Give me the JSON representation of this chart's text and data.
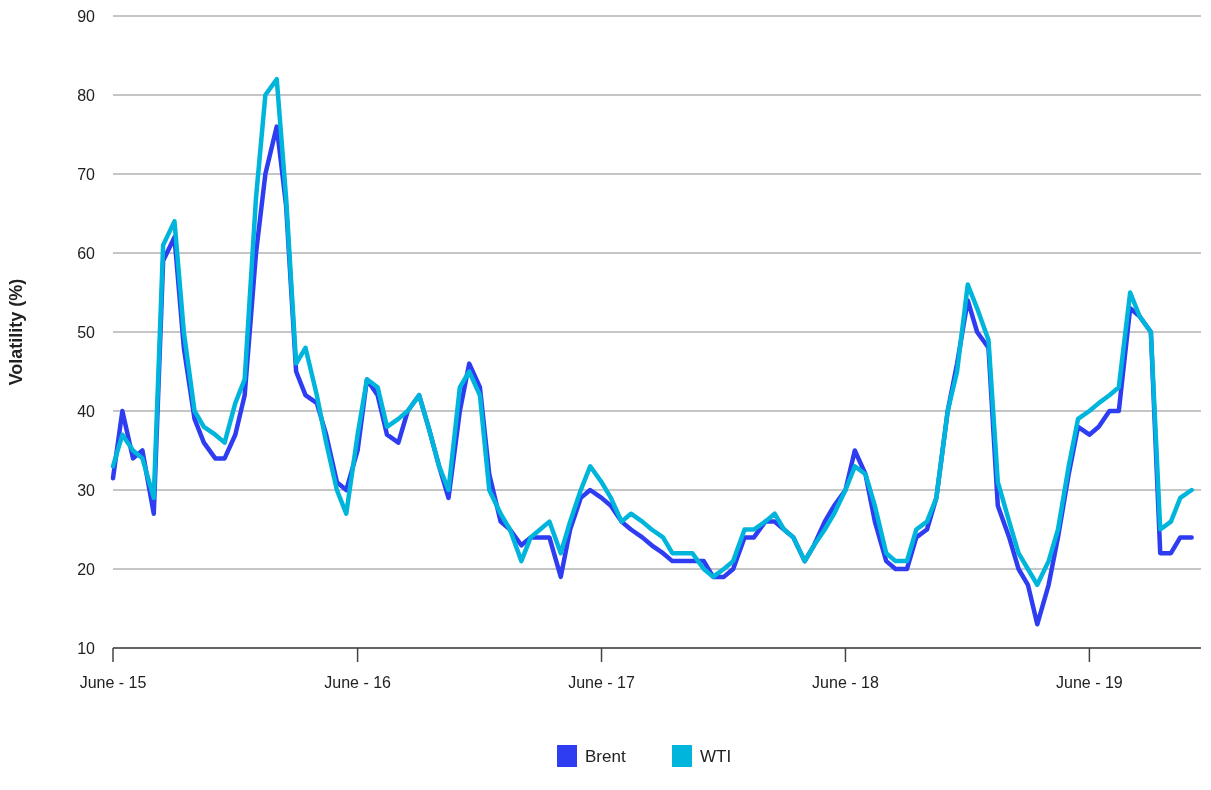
{
  "chart_data": {
    "type": "line",
    "ylabel": "Volatility (%)",
    "x": [
      "2015-06-01",
      "2015-06-15",
      "2015-07-01",
      "2015-07-15",
      "2015-08-01",
      "2015-08-15",
      "2015-09-01",
      "2015-09-15",
      "2015-10-01",
      "2015-10-15",
      "2015-11-01",
      "2015-11-15",
      "2015-12-01",
      "2015-12-15",
      "2016-01-01",
      "2016-01-15",
      "2016-02-01",
      "2016-02-15",
      "2016-03-01",
      "2016-03-15",
      "2016-04-01",
      "2016-04-15",
      "2016-05-01",
      "2016-05-15",
      "2016-06-01",
      "2016-06-15",
      "2016-07-01",
      "2016-07-15",
      "2016-08-01",
      "2016-08-15",
      "2016-09-01",
      "2016-09-15",
      "2016-10-01",
      "2016-10-15",
      "2016-11-01",
      "2016-11-15",
      "2016-12-01",
      "2016-12-15",
      "2017-01-01",
      "2017-01-15",
      "2017-02-01",
      "2017-02-15",
      "2017-03-01",
      "2017-03-15",
      "2017-04-01",
      "2017-04-15",
      "2017-05-01",
      "2017-05-15",
      "2017-06-01",
      "2017-06-15",
      "2017-07-01",
      "2017-07-15",
      "2017-08-01",
      "2017-08-15",
      "2017-09-01",
      "2017-09-15",
      "2017-10-01",
      "2017-10-15",
      "2017-11-01",
      "2017-11-15",
      "2017-12-01",
      "2017-12-15",
      "2018-01-01",
      "2018-01-15",
      "2018-02-01",
      "2018-02-15",
      "2018-03-01",
      "2018-03-15",
      "2018-04-01",
      "2018-04-15",
      "2018-05-01",
      "2018-05-15",
      "2018-06-01",
      "2018-06-15",
      "2018-07-01",
      "2018-07-15",
      "2018-08-01",
      "2018-08-15",
      "2018-09-01",
      "2018-09-15",
      "2018-10-01",
      "2018-10-15",
      "2018-11-01",
      "2018-11-15",
      "2018-12-01",
      "2018-12-15",
      "2019-01-01",
      "2019-01-15",
      "2019-02-01",
      "2019-02-15",
      "2019-03-01",
      "2019-03-15",
      "2019-04-01",
      "2019-04-15",
      "2019-05-01",
      "2019-05-15",
      "2019-06-01",
      "2019-06-15",
      "2019-07-01",
      "2019-07-15",
      "2019-08-01",
      "2019-08-15",
      "2019-09-01",
      "2019-09-15",
      "2019-10-01",
      "2019-10-15",
      "2019-11-01"
    ],
    "series": [
      {
        "name": "Brent",
        "color": "#2e3cf2",
        "values": [
          31.5,
          40,
          34,
          35,
          27,
          59,
          62,
          48,
          39,
          36,
          34,
          34,
          37,
          42,
          60,
          70,
          76,
          66,
          45,
          42,
          41,
          37,
          31,
          30,
          35,
          44,
          42,
          37,
          36,
          40,
          42,
          38,
          33,
          29,
          40,
          46,
          43,
          32,
          26,
          25,
          23,
          24,
          24,
          24,
          19,
          25,
          29,
          30,
          29,
          28,
          26,
          25,
          24,
          23,
          22,
          21,
          21,
          21,
          21,
          19,
          19,
          20,
          24,
          24,
          26,
          26,
          25,
          24,
          21,
          23,
          26,
          28,
          30,
          35,
          32,
          26,
          21,
          20,
          20,
          24,
          25,
          29,
          40,
          46,
          54,
          50,
          48,
          28,
          24,
          20,
          18,
          13,
          18,
          24,
          32,
          38,
          37,
          38,
          40,
          40,
          53,
          52,
          50,
          22,
          22,
          24,
          24
        ]
      },
      {
        "name": "WTI",
        "color": "#00b5dc",
        "values": [
          33,
          37,
          35,
          34,
          29,
          61,
          64,
          50,
          40,
          38,
          37,
          36,
          41,
          44,
          67,
          80,
          82,
          67,
          46,
          48,
          42,
          36,
          30,
          27,
          37,
          44,
          43,
          38,
          39,
          40,
          42,
          38,
          33,
          30,
          43,
          45,
          42,
          30,
          27,
          25,
          21,
          24,
          25,
          26,
          22,
          26,
          30,
          33,
          31,
          29,
          26,
          27,
          26,
          25,
          24,
          22,
          22,
          22,
          20,
          19,
          20,
          21,
          25,
          25,
          26,
          27,
          25,
          24,
          21,
          23,
          25,
          27,
          30,
          33,
          32,
          28,
          22,
          21,
          21,
          25,
          26,
          29,
          40,
          45,
          56,
          53,
          49,
          31,
          26,
          22,
          20,
          18,
          21,
          25,
          33,
          39,
          40,
          41,
          42,
          43,
          55,
          52,
          50,
          25,
          26,
          29,
          30
        ]
      }
    ],
    "xlim": [
      "2015-06-01",
      "2019-11-15"
    ],
    "xticks": [
      {
        "value": "2015-06-01",
        "label": "June - 15"
      },
      {
        "value": "2016-06-01",
        "label": "June - 16"
      },
      {
        "value": "2017-06-01",
        "label": "June - 17"
      },
      {
        "value": "2018-06-01",
        "label": "June - 18"
      },
      {
        "value": "2019-06-01",
        "label": "June - 19"
      }
    ],
    "ylim": [
      10,
      90
    ],
    "yticks": [
      10,
      20,
      30,
      40,
      50,
      60,
      70,
      80,
      90
    ],
    "grid": "y",
    "legend": "bottom",
    "line_style": "solid",
    "marker": "none"
  }
}
